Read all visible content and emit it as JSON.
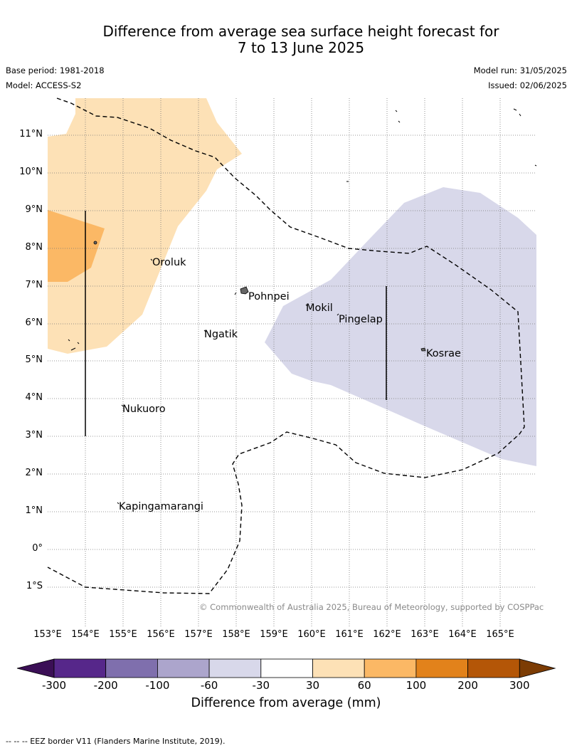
{
  "title": {
    "line1": "Difference from average sea surface height forecast for",
    "line2": "7 to 13 June 2025"
  },
  "meta": {
    "base_period": "Base period: 1981-2018",
    "model": "Model: ACCESS-S2",
    "model_run": "Model run: 31/05/2025",
    "issued": "Issued: 02/06/2025"
  },
  "axes": {
    "lat_labels": [
      "11°N",
      "10°N",
      "9°N",
      "8°N",
      "7°N",
      "6°N",
      "5°N",
      "4°N",
      "3°N",
      "2°N",
      "1°N",
      "0°",
      "1°S"
    ],
    "lon_labels": [
      "153°E",
      "154°E",
      "155°E",
      "156°E",
      "157°E",
      "158°E",
      "159°E",
      "160°E",
      "161°E",
      "162°E",
      "163°E",
      "164°E",
      "165°E"
    ]
  },
  "places": [
    {
      "name": "Oroluk"
    },
    {
      "name": "Pohnpei"
    },
    {
      "name": "Mokil"
    },
    {
      "name": "Pingelap"
    },
    {
      "name": "Ngatik"
    },
    {
      "name": "Kosrae"
    },
    {
      "name": "Nukuoro"
    },
    {
      "name": "Kapingamarangi"
    }
  ],
  "copyright": "© Commonwealth of Australia 2025, Bureau of Meteorology, supported by COSPPac",
  "colorbar": {
    "title": "Difference from average (mm)",
    "ticks": [
      "-300",
      "-200",
      "-100",
      "-60",
      "-30",
      "30",
      "60",
      "100",
      "200",
      "300"
    ],
    "colors": [
      "#3b0f56",
      "#56278a",
      "#7f6fad",
      "#aca5cc",
      "#d8d8ea",
      "#ffffff",
      "#fde1b6",
      "#fbb865",
      "#e2821b",
      "#b45607",
      "#7c3c04"
    ]
  },
  "footer": "--  --  -- EEZ border V11 (Flanders Marine Institute, 2019)."
}
